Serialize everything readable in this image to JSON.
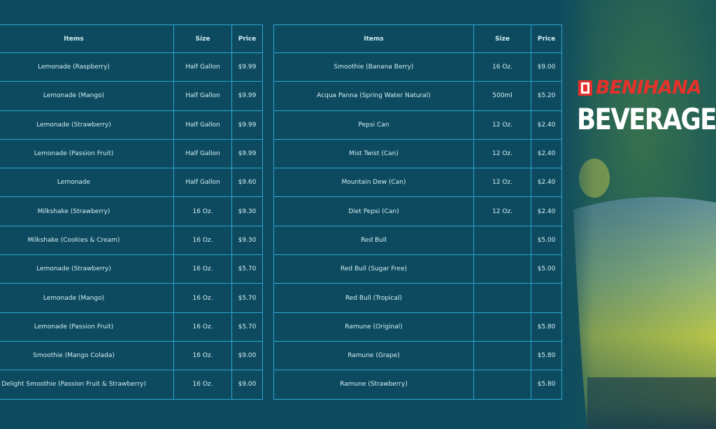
{
  "brand": "BENIHANA",
  "heading": "BEVERAGE",
  "tables": [
    {
      "headers": [
        "Items",
        "Size",
        "Price"
      ],
      "rows": [
        [
          "Lemonade (Raspberry)",
          "Half Gallon",
          "$9.99"
        ],
        [
          "Lemonade (Mango)",
          "Half Gallon",
          "$9.99"
        ],
        [
          "Lemonade (Strawberry)",
          "Half Gallon",
          "$9.99"
        ],
        [
          "Lemonade (Passion Fruit)",
          "Half Gallon",
          "$9.99"
        ],
        [
          "Lemonade",
          "Half Gallon",
          "$9.60"
        ],
        [
          "Milkshake (Strawberry)",
          "16 Oz.",
          "$9.30"
        ],
        [
          "Milkshake (Cookies & Cream)",
          "16 Oz.",
          "$9.30"
        ],
        [
          "Lemonade (Strawberry)",
          "16 Oz.",
          "$5.70"
        ],
        [
          "Lemonade (Mango)",
          "16 Oz.",
          "$5.70"
        ],
        [
          "Lemonade (Passion Fruit)",
          "16 Oz.",
          "$5.70"
        ],
        [
          "Smoothie (Mango Colada)",
          "16 Oz.",
          "$9.00"
        ],
        [
          "Delight Smoothie (Passion Fruit & Strawberry)",
          "16 Oz.",
          "$9.00"
        ]
      ]
    },
    {
      "headers": [
        "Items",
        "Size",
        "Price"
      ],
      "rows": [
        [
          "Smoothie (Banana Berry)",
          "16 Oz.",
          "$9.00"
        ],
        [
          "Acqua Panna (Spring Water Natural)",
          "500ml",
          "$5.20"
        ],
        [
          "Pepsi Can",
          "12 Oz.",
          "$2.40"
        ],
        [
          "Mist Twist (Can)",
          "12 Oz.",
          "$2.40"
        ],
        [
          "Mountain Dew (Can)",
          "12 Oz.",
          "$2.40"
        ],
        [
          "Diet Pepsi (Can)",
          "12 Oz.",
          "$2.40"
        ],
        [
          "Red Bull",
          null,
          "$5.00"
        ],
        [
          "Red Bull (Sugar Free)",
          null,
          "$5.00"
        ],
        [
          "Red Bull (Tropical)",
          null,
          null
        ],
        [
          "Ramune (Original)",
          null,
          "$5.80"
        ],
        [
          "Ramune (Grape)",
          null,
          "$5.80"
        ],
        [
          "Ramune (Strawberry)",
          null,
          "$5.80"
        ]
      ]
    }
  ]
}
